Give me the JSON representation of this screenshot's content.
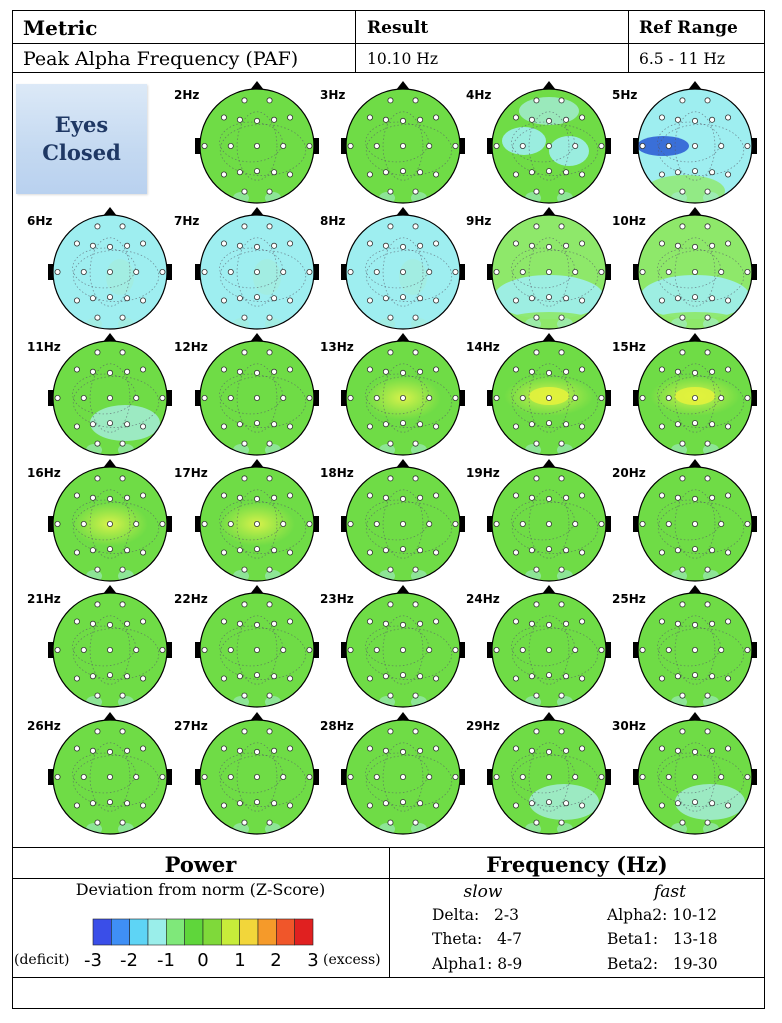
{
  "table": {
    "headers": {
      "metric": "Metric",
      "result": "Result",
      "ref_range": "Ref Range"
    },
    "row": {
      "metric": "Peak Alpha Frequency (PAF)",
      "result": "10.10 Hz",
      "ref_range": "6.5 - 11 Hz"
    }
  },
  "condition_label": [
    "Eyes",
    "Closed"
  ],
  "topomaps": [
    {
      "freq": "2Hz",
      "tone": 0
    },
    {
      "freq": "3Hz",
      "tone": 0
    },
    {
      "freq": "4Hz",
      "tone": 1
    },
    {
      "freq": "5Hz",
      "tone": 2
    },
    {
      "freq": "6Hz",
      "tone": 3
    },
    {
      "freq": "7Hz",
      "tone": 3
    },
    {
      "freq": "8Hz",
      "tone": 3
    },
    {
      "freq": "9Hz",
      "tone": 4
    },
    {
      "freq": "10Hz",
      "tone": 4
    },
    {
      "freq": "11Hz",
      "tone": 5
    },
    {
      "freq": "12Hz",
      "tone": 0
    },
    {
      "freq": "13Hz",
      "tone": 6
    },
    {
      "freq": "14Hz",
      "tone": 7
    },
    {
      "freq": "15Hz",
      "tone": 7
    },
    {
      "freq": "16Hz",
      "tone": 6
    },
    {
      "freq": "17Hz",
      "tone": 6
    },
    {
      "freq": "18Hz",
      "tone": 0
    },
    {
      "freq": "19Hz",
      "tone": 0
    },
    {
      "freq": "20Hz",
      "tone": 0
    },
    {
      "freq": "21Hz",
      "tone": 0
    },
    {
      "freq": "22Hz",
      "tone": 0
    },
    {
      "freq": "23Hz",
      "tone": 0
    },
    {
      "freq": "24Hz",
      "tone": 0
    },
    {
      "freq": "25Hz",
      "tone": 0
    },
    {
      "freq": "26Hz",
      "tone": 0
    },
    {
      "freq": "27Hz",
      "tone": 0
    },
    {
      "freq": "28Hz",
      "tone": 0
    },
    {
      "freq": "29Hz",
      "tone": 5
    },
    {
      "freq": "30Hz",
      "tone": 5
    }
  ],
  "colors": {
    "base_green": "#6fdc46",
    "light_green": "#8ee86a",
    "yellowish": "#c8f04a",
    "mild_cyan": "#a5ecd8",
    "cyan": "#9eeef0",
    "blue": "#3a6fd8",
    "accent_text": "#1f3864"
  },
  "legend": {
    "power_title": "Power",
    "zscore_label": "Deviation from norm (Z-Score)",
    "deficit": "(deficit)",
    "excess": "(excess)",
    "ticks": [
      "-3",
      "-2",
      "-1",
      "0",
      "1",
      "2",
      "3"
    ],
    "scale_colors": [
      "#3a4ee8",
      "#3f8ff5",
      "#5ed4f5",
      "#9aeeea",
      "#7fe87a",
      "#5fd63b",
      "#7fd93a",
      "#c7ec3a",
      "#f2d63a",
      "#f59a2a",
      "#f0562a",
      "#e02020"
    ]
  },
  "frequency": {
    "title": "Frequency (Hz)",
    "slow_label": "slow",
    "fast_label": "fast",
    "slow": [
      "Delta:   2-3",
      "Theta:   4-7",
      "Alpha1: 8-9"
    ],
    "fast": [
      "Alpha2: 10-12",
      "Beta1:   13-18",
      "Beta2:   19-30"
    ]
  }
}
